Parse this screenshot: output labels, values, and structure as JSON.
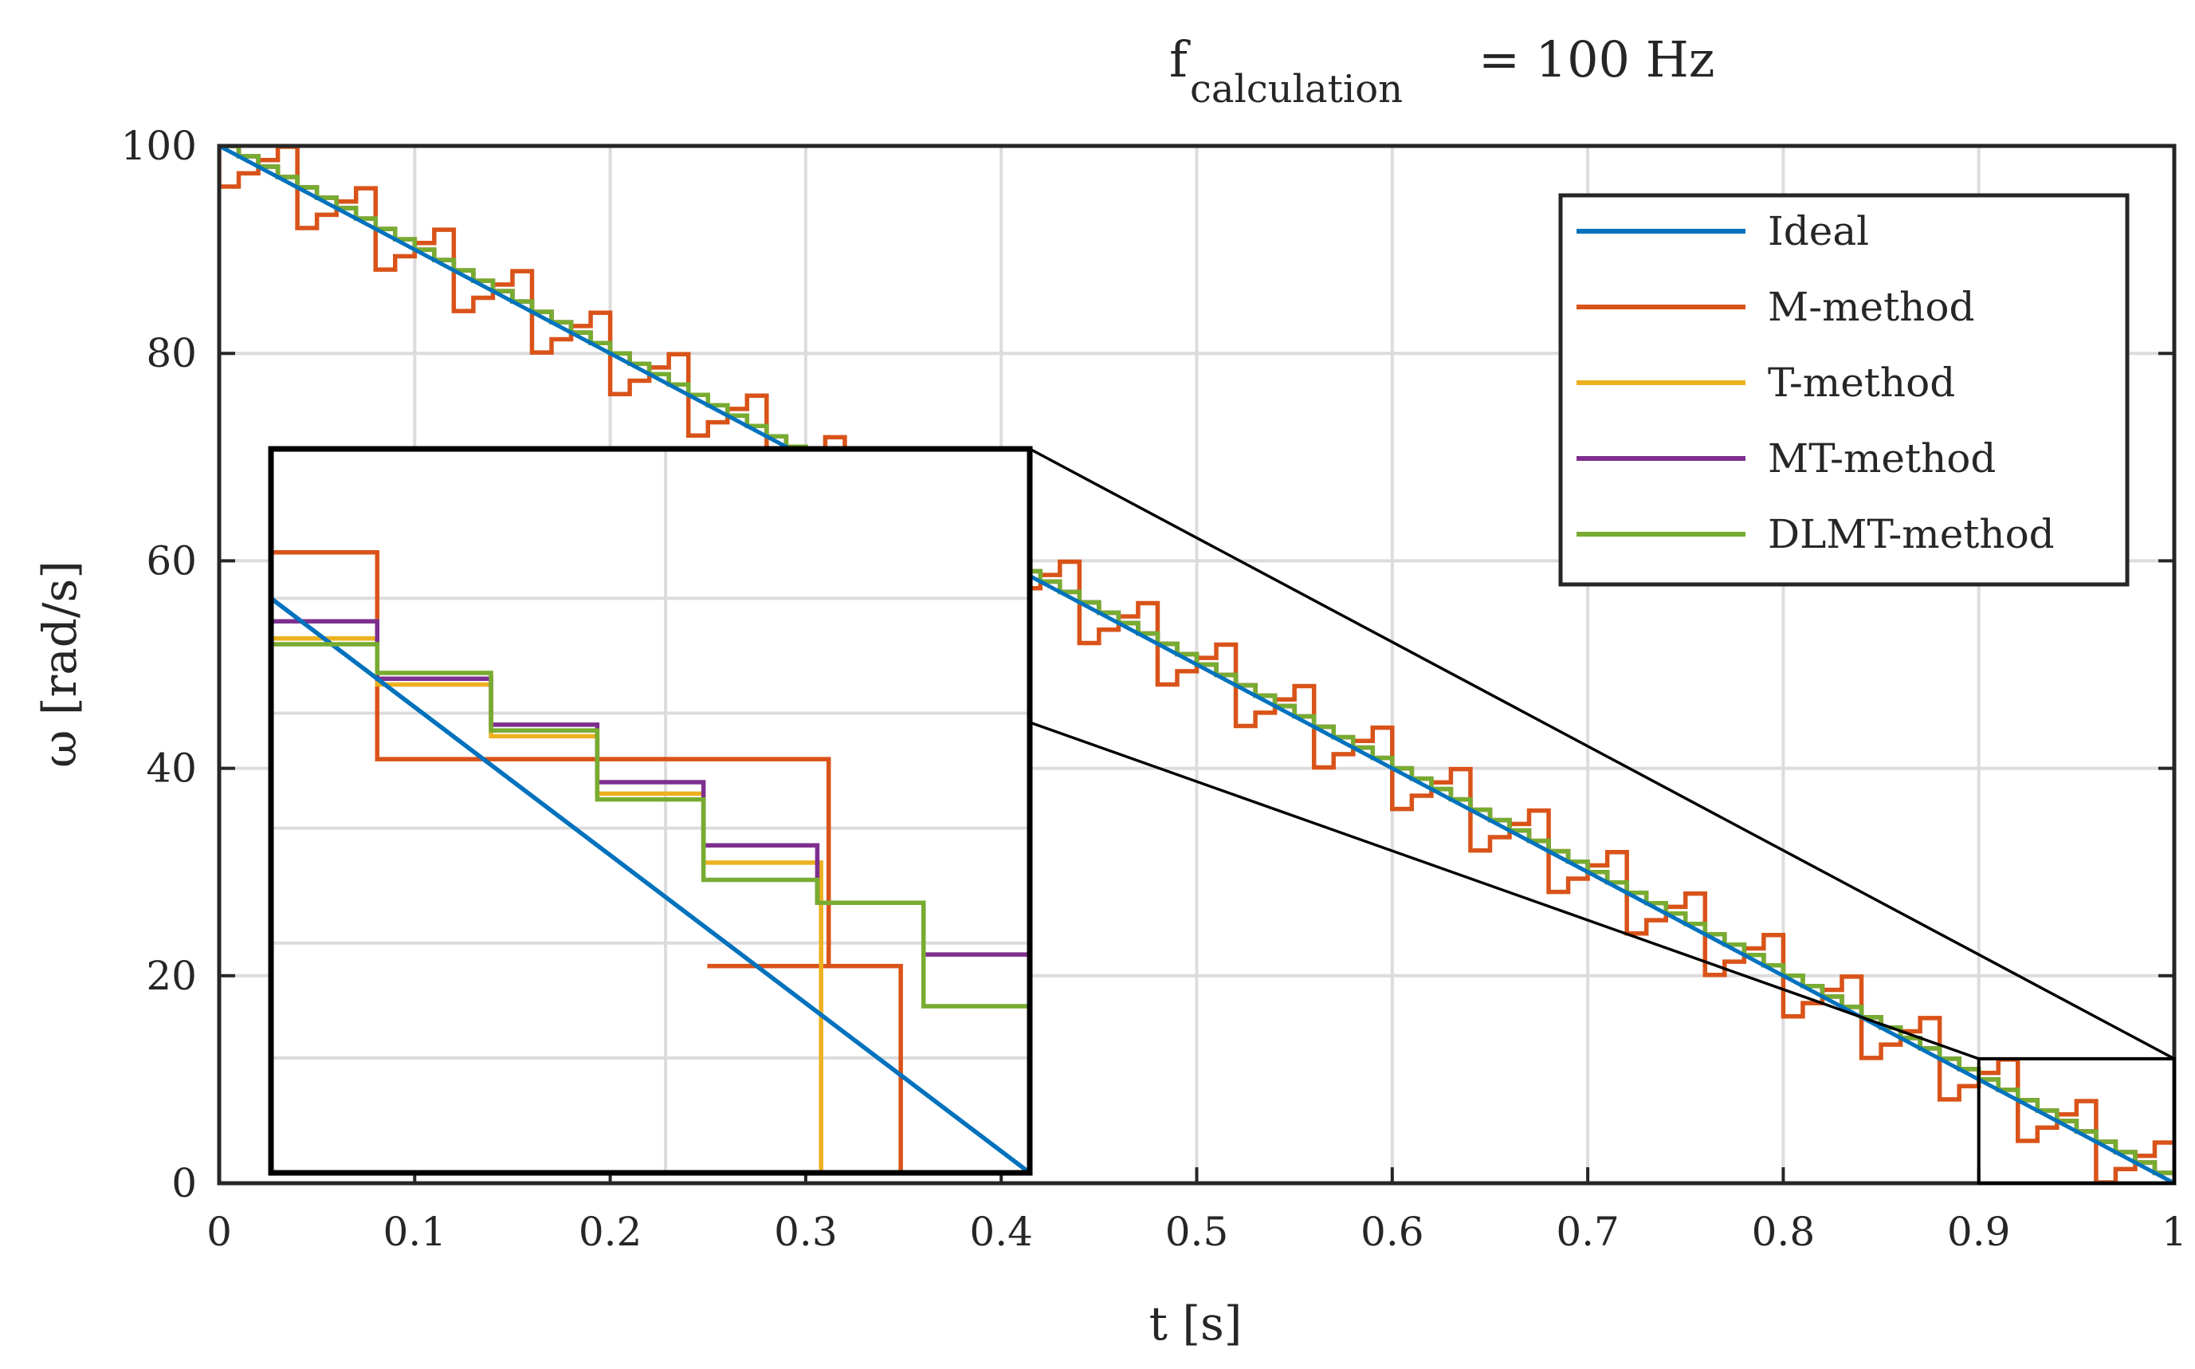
{
  "chart_data": {
    "type": "line",
    "title": "f",
    "title_subscript": "calculation",
    "title_suffix": " = 100 Hz",
    "xlabel": "t [s]",
    "ylabel": "ω [rad/s]",
    "xlim": [
      0,
      1
    ],
    "ylim": [
      0,
      100
    ],
    "grid": true,
    "legend_position": "top-right",
    "x_ticks": [
      0,
      0.1,
      0.2,
      0.3,
      0.4,
      0.5,
      0.6,
      0.7,
      0.8,
      0.9,
      1
    ],
    "x_tick_labels": [
      "0",
      "0.1",
      "0.2",
      "0.3",
      "0.4",
      "0.5",
      "0.6",
      "0.7",
      "0.8",
      "0.9",
      "1"
    ],
    "y_ticks": [
      0,
      20,
      40,
      60,
      80,
      100
    ],
    "y_tick_labels": [
      "0",
      "20",
      "40",
      "60",
      "80",
      "100"
    ],
    "series": [
      {
        "name": "Ideal",
        "color": "#0072BD",
        "step_style": "linear",
        "x": [
          0,
          1
        ],
        "y": [
          100,
          0
        ]
      },
      {
        "name": "M-method",
        "color": "#D95319",
        "step_style": "zigzag",
        "y_jitter_max": 3.8,
        "x": [
          0,
          1
        ],
        "y": [
          100,
          0
        ]
      },
      {
        "name": "T-method",
        "color": "#EDB120",
        "step_style": "staircase",
        "x": [
          0,
          1
        ],
        "y": [
          100,
          0
        ]
      },
      {
        "name": "MT-method",
        "color": "#7E2F8E",
        "step_style": "staircase",
        "x": [
          0,
          1
        ],
        "y": [
          100,
          0
        ]
      },
      {
        "name": "DLMT-method",
        "color": "#77AC30",
        "step_style": "staircase",
        "x": [
          0,
          1
        ],
        "y": [
          100,
          0
        ]
      }
    ],
    "inset": {
      "source_xlim": [
        0.9,
        1.0
      ],
      "source_ylim": [
        0,
        12
      ],
      "description": "zoomed view of t from 0.9 to 1.0 s",
      "series": [
        {
          "name": "Ideal",
          "color": "#0072BD",
          "points": [
            [
              0.9,
              10
            ],
            [
              1.0,
              0
            ]
          ]
        },
        {
          "name": "M-method",
          "color": "#D95319",
          "points": [
            [
              0.9,
              10.8
            ],
            [
              0.914,
              10.8
            ],
            [
              0.914,
              7.2
            ],
            [
              0.9735,
              7.2
            ],
            [
              0.9735,
              3.6
            ],
            [
              0.9575,
              3.6
            ],
            [
              0.9575,
              3.6
            ],
            [
              0.983,
              3.6
            ],
            [
              0.983,
              0
            ]
          ]
        },
        {
          "name": "T-method",
          "color": "#EDB120",
          "points": [
            [
              0.9,
              9.3
            ],
            [
              0.914,
              9.3
            ],
            [
              0.914,
              8.5
            ],
            [
              0.929,
              8.5
            ],
            [
              0.929,
              7.6
            ],
            [
              0.943,
              7.6
            ],
            [
              0.943,
              6.6
            ],
            [
              0.957,
              6.6
            ],
            [
              0.957,
              5.4
            ],
            [
              0.9725,
              5.4
            ],
            [
              0.9725,
              0
            ]
          ]
        },
        {
          "name": "MT-method",
          "color": "#7E2F8E",
          "points": [
            [
              0.9,
              9.6
            ],
            [
              0.914,
              9.6
            ],
            [
              0.914,
              8.6
            ],
            [
              0.929,
              8.6
            ],
            [
              0.929,
              7.8
            ],
            [
              0.943,
              7.8
            ],
            [
              0.943,
              6.8
            ],
            [
              0.957,
              6.8
            ],
            [
              0.957,
              5.7
            ],
            [
              0.972,
              5.7
            ],
            [
              0.972,
              4.7
            ],
            [
              0.986,
              4.7
            ],
            [
              0.986,
              3.8
            ],
            [
              1.0,
              3.8
            ],
            [
              1.0,
              0
            ]
          ]
        },
        {
          "name": "DLMT-method",
          "color": "#77AC30",
          "points": [
            [
              0.9,
              10.4
            ],
            [
              0.9,
              9.2
            ],
            [
              0.914,
              9.2
            ],
            [
              0.914,
              8.7
            ],
            [
              0.929,
              8.7
            ],
            [
              0.929,
              7.7
            ],
            [
              0.943,
              7.7
            ],
            [
              0.943,
              6.5
            ],
            [
              0.957,
              6.5
            ],
            [
              0.957,
              5.1
            ],
            [
              0.972,
              5.1
            ],
            [
              0.972,
              4.7
            ],
            [
              0.986,
              4.7
            ],
            [
              0.986,
              2.9
            ],
            [
              1.0,
              2.9
            ]
          ]
        }
      ]
    }
  }
}
